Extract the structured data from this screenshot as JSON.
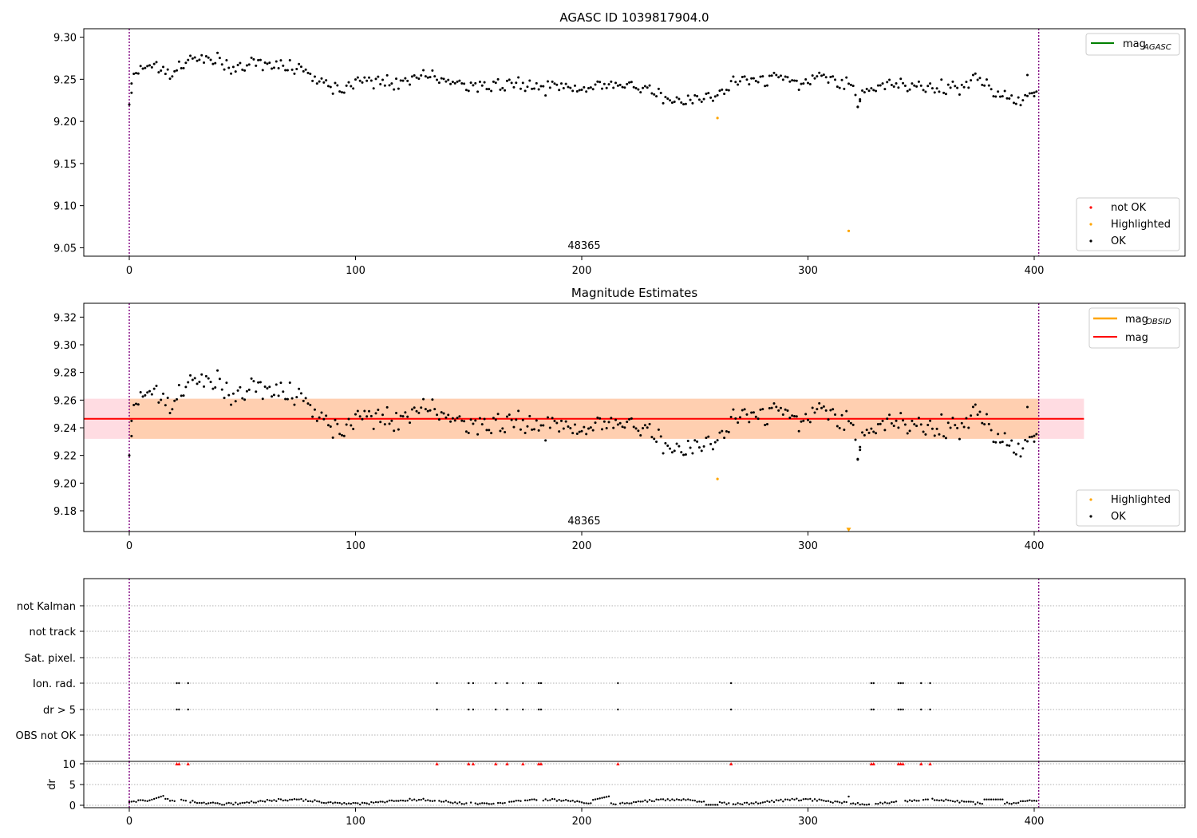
{
  "chart_data": [
    {
      "type": "scatter",
      "title": "AGASC ID 1039817904.0",
      "xlim": [
        -20,
        466
      ],
      "ylim": [
        9.04,
        9.31
      ],
      "xticks": [
        0,
        100,
        200,
        300,
        400
      ],
      "xtick_labels": [
        "0",
        "100",
        "200",
        "300",
        "400"
      ],
      "yticks": [
        9.05,
        9.1,
        9.15,
        9.2,
        9.25,
        9.3
      ],
      "ytick_labels": [
        "9.05",
        "9.10",
        "9.15",
        "9.20",
        "9.25",
        "9.30"
      ],
      "vlines": [
        0,
        402
      ],
      "vline_color": "#800080",
      "annotations": [
        {
          "x": 200,
          "text": "48365"
        }
      ],
      "legend_lines": [
        {
          "label": "mag",
          "sub": "AGASC",
          "color": "#008000"
        }
      ],
      "legend_markers": [
        {
          "label": "not OK",
          "color": "#ff0000"
        },
        {
          "label": "Highlighted",
          "color": "#ffa500"
        },
        {
          "label": "OK",
          "color": "#000000"
        }
      ],
      "highlighted": [
        {
          "x": 260,
          "y": 9.204
        },
        {
          "x": 318,
          "y": 9.07
        }
      ],
      "anchors": [
        [
          0,
          9.226
        ],
        [
          2,
          9.255
        ],
        [
          4,
          9.265
        ],
        [
          8,
          9.265
        ],
        [
          12,
          9.27
        ],
        [
          16,
          9.258
        ],
        [
          20,
          9.262
        ],
        [
          25,
          9.27
        ],
        [
          30,
          9.275
        ],
        [
          35,
          9.272
        ],
        [
          40,
          9.27
        ],
        [
          45,
          9.262
        ],
        [
          50,
          9.265
        ],
        [
          55,
          9.27
        ],
        [
          60,
          9.268
        ],
        [
          65,
          9.265
        ],
        [
          70,
          9.265
        ],
        [
          75,
          9.26
        ],
        [
          80,
          9.255
        ],
        [
          85,
          9.252
        ],
        [
          90,
          9.24
        ],
        [
          95,
          9.236
        ],
        [
          100,
          9.252
        ],
        [
          110,
          9.25
        ],
        [
          120,
          9.245
        ],
        [
          130,
          9.255
        ],
        [
          140,
          9.248
        ],
        [
          150,
          9.242
        ],
        [
          160,
          9.24
        ],
        [
          170,
          9.245
        ],
        [
          180,
          9.24
        ],
        [
          190,
          9.242
        ],
        [
          200,
          9.238
        ],
        [
          210,
          9.242
        ],
        [
          220,
          9.245
        ],
        [
          230,
          9.24
        ],
        [
          235,
          9.232
        ],
        [
          240,
          9.225
        ],
        [
          245,
          9.225
        ],
        [
          250,
          9.23
        ],
        [
          255,
          9.228
        ],
        [
          260,
          9.23
        ],
        [
          265,
          9.24
        ],
        [
          270,
          9.25
        ],
        [
          280,
          9.252
        ],
        [
          290,
          9.252
        ],
        [
          295,
          9.248
        ],
        [
          300,
          9.245
        ],
        [
          305,
          9.255
        ],
        [
          310,
          9.248
        ],
        [
          315,
          9.245
        ],
        [
          320,
          9.24
        ],
        [
          322,
          9.222
        ],
        [
          325,
          9.24
        ],
        [
          330,
          9.245
        ],
        [
          340,
          9.245
        ],
        [
          350,
          9.238
        ],
        [
          360,
          9.238
        ],
        [
          370,
          9.245
        ],
        [
          375,
          9.25
        ],
        [
          380,
          9.24
        ],
        [
          385,
          9.232
        ],
        [
          390,
          9.225
        ],
        [
          395,
          9.225
        ],
        [
          398,
          9.23
        ],
        [
          401,
          9.235
        ]
      ],
      "ok_note": "approx. 400 OK points following the anchor curve with scatter of about +/-0.01"
    },
    {
      "type": "scatter",
      "title": "Magnitude Estimates",
      "xlim": [
        -20,
        466
      ],
      "ylim": [
        9.165,
        9.33
      ],
      "xticks": [
        0,
        100,
        200,
        300,
        400
      ],
      "xtick_labels": [
        "0",
        "100",
        "200",
        "300",
        "400"
      ],
      "yticks": [
        9.18,
        9.2,
        9.22,
        9.24,
        9.26,
        9.28,
        9.3,
        9.32
      ],
      "ytick_labels": [
        "9.18",
        "9.20",
        "9.22",
        "9.24",
        "9.26",
        "9.28",
        "9.30",
        "9.32"
      ],
      "vlines": [
        0,
        402
      ],
      "vline_color": "#800080",
      "annotations": [
        {
          "x": 200,
          "text": "48365"
        }
      ],
      "mag_line": {
        "y": 9.2465,
        "x0": -20,
        "x1": 422,
        "color": "#ff0000"
      },
      "mag_band": {
        "y0": 9.232,
        "y1": 9.261,
        "x0": -20,
        "x1": 422,
        "color": "#ffc0cb"
      },
      "obsid_band": {
        "y0": 9.232,
        "y1": 9.261,
        "x0": 0,
        "x1": 402,
        "color": "#ffa500"
      },
      "legend_lines": [
        {
          "label": "mag",
          "sub": "OBSID",
          "color": "#ffa500"
        },
        {
          "label": "mag",
          "sub": "",
          "color": "#ff0000"
        }
      ],
      "legend_markers": [
        {
          "label": "Highlighted",
          "color": "#ffa500"
        },
        {
          "label": "OK",
          "color": "#000000"
        }
      ],
      "highlighted": [
        {
          "x": 260,
          "y": 9.203
        }
      ],
      "offscale_marker": {
        "x": 318,
        "y": 9.166
      }
    },
    {
      "type": "scatter",
      "title": "",
      "xlim": [
        -20,
        466
      ],
      "xticks": [
        0,
        100,
        200,
        300,
        400
      ],
      "xtick_labels": [
        "0",
        "100",
        "200",
        "300",
        "400"
      ],
      "vlines": [
        0,
        402
      ],
      "vline_color": "#800080",
      "flag_labels": [
        "not Kalman",
        "not track",
        "Sat. pixel.",
        "Ion. rad.",
        "dr > 5",
        "OBS not OK"
      ],
      "flagged_x": [
        21,
        22,
        26,
        136,
        150,
        152,
        162,
        167,
        174,
        181,
        182,
        216,
        266,
        328,
        329,
        340,
        341,
        342,
        350,
        354
      ],
      "dr_ylabel": "dr",
      "dr_ylim": [
        -0.5,
        10
      ],
      "dr_yticks": [
        0,
        5,
        10
      ],
      "dr_ytick_labels": [
        "0",
        "5",
        "10"
      ],
      "dr_clip_value": 10,
      "dr_clip_color": "#ff0000"
    }
  ]
}
